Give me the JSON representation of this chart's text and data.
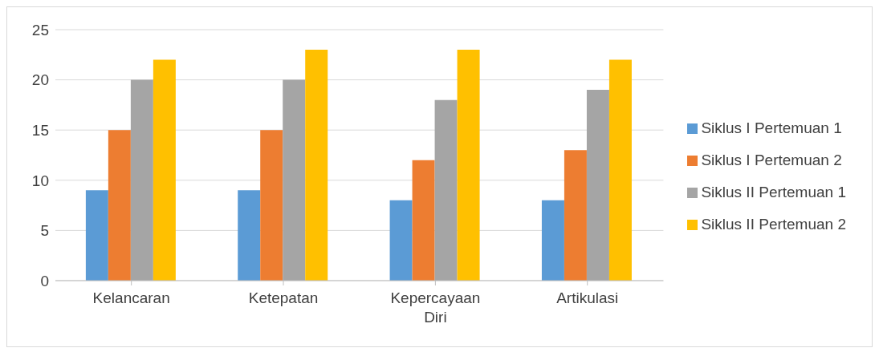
{
  "chart_data": {
    "type": "bar",
    "categories": [
      "Kelancaran",
      "Ketepatan",
      "Kepercayaan Diri",
      "Artikulasi"
    ],
    "series": [
      {
        "name": "Siklus I Pertemuan 1",
        "color": "#5b9bd5",
        "values": [
          9,
          9,
          8,
          8
        ]
      },
      {
        "name": "Siklus I Pertemuan 2",
        "color": "#ed7d31",
        "values": [
          15,
          15,
          12,
          13
        ]
      },
      {
        "name": "Siklus II Pertemuan 1",
        "color": "#a5a5a5",
        "values": [
          20,
          20,
          18,
          19
        ]
      },
      {
        "name": "Siklus II Pertemuan 2",
        "color": "#ffc000",
        "values": [
          22,
          23,
          23,
          22
        ]
      }
    ],
    "ylim": [
      0,
      25
    ],
    "yticks": [
      0,
      5,
      10,
      15,
      20,
      25
    ],
    "grid": "y",
    "legend": "right"
  }
}
